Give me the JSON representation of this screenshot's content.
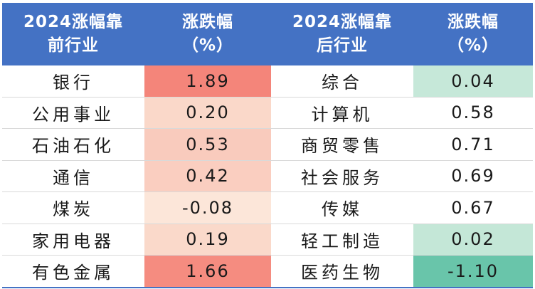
{
  "header": {
    "col1": [
      "2024涨幅靠",
      "前行业"
    ],
    "col2": [
      "涨跌幅",
      "（%）"
    ],
    "col3": [
      "2024涨幅靠",
      "后行业"
    ],
    "col4": [
      "涨跌幅",
      "（%）"
    ]
  },
  "rows": [
    {
      "top_name": "银行",
      "top_value": "1.89",
      "top_color": "#f4857a",
      "bottom_name": "综合",
      "bottom_value": "0.04",
      "bottom_color": "#c6e8d9"
    },
    {
      "top_name": "公用事业",
      "top_value": "0.20",
      "top_color": "#fad8c9",
      "bottom_name": "计算机",
      "bottom_value": "0.58",
      "bottom_color": "#ffffff"
    },
    {
      "top_name": "石油石化",
      "top_value": "0.53",
      "top_color": "#f9cbbd",
      "bottom_name": "商贸零售",
      "bottom_value": "0.71",
      "bottom_color": "#ffffff"
    },
    {
      "top_name": "通信",
      "top_value": "0.42",
      "top_color": "#facec0",
      "bottom_name": "社会服务",
      "bottom_value": "0.69",
      "bottom_color": "#ffffff"
    },
    {
      "top_name": "煤炭",
      "top_value": "-0.08",
      "top_color": "#fce6d9",
      "bottom_name": "传媒",
      "bottom_value": "0.67",
      "bottom_color": "#ffffff"
    },
    {
      "top_name": "家用电器",
      "top_value": "0.19",
      "top_color": "#fad9ca",
      "bottom_name": "轻工制造",
      "bottom_value": "0.02",
      "bottom_color": "#c4e7d7"
    },
    {
      "top_name": "有色金属",
      "top_value": "1.66",
      "top_color": "#f58c80",
      "bottom_name": "医药生物",
      "bottom_value": "-1.10",
      "bottom_color": "#69c5aa"
    }
  ]
}
